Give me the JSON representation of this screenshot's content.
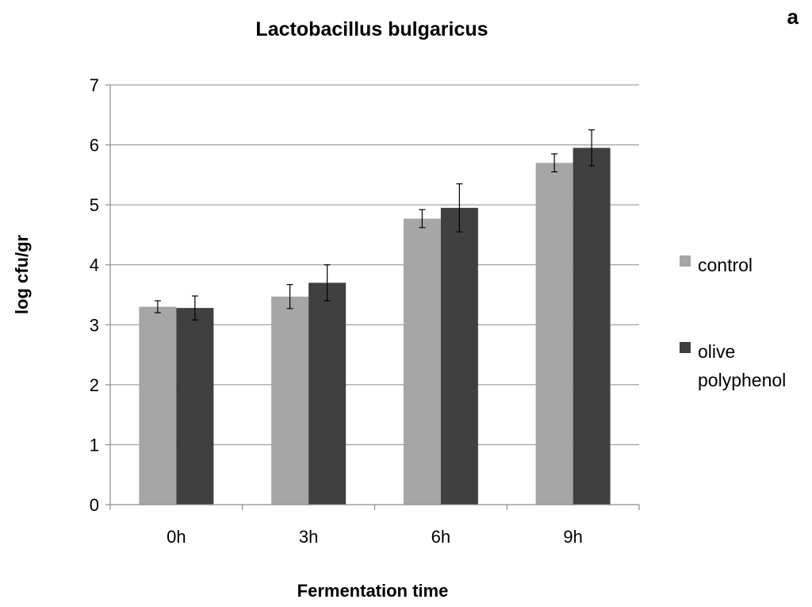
{
  "panel_label": "a",
  "chart_data": {
    "type": "bar",
    "title": "Lactobacillus bulgaricus",
    "xlabel": "Fermentation time",
    "ylabel": "log cfu/gr",
    "categories": [
      "0h",
      "3h",
      "6h",
      "9h"
    ],
    "ylim": [
      0,
      7
    ],
    "yticks": [
      0,
      1,
      2,
      3,
      4,
      5,
      6,
      7
    ],
    "grid": true,
    "legend_position": "right",
    "series": [
      {
        "name": "control",
        "color": "#a6a6a6",
        "values": [
          3.3,
          3.47,
          4.77,
          5.7
        ],
        "errors": [
          0.1,
          0.2,
          0.15,
          0.15
        ]
      },
      {
        "name": "olive polyphenol",
        "color": "#404040",
        "values": [
          3.28,
          3.7,
          4.95,
          5.95
        ],
        "errors": [
          0.2,
          0.3,
          0.4,
          0.3
        ]
      }
    ]
  }
}
